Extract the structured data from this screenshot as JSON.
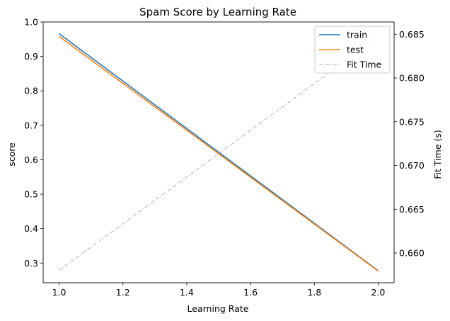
{
  "chart_data": {
    "type": "line",
    "title": "Spam Score by Learning Rate",
    "xlabel": "Learning Rate",
    "ylabel": "score",
    "y2label": "Fit Time (s)",
    "xlim": [
      0.95,
      2.05
    ],
    "ylim": [
      0.243,
      1.0
    ],
    "y2lim": [
      0.6566,
      0.6864
    ],
    "xticks": [
      "1.0",
      "1.2",
      "1.4",
      "1.6",
      "1.8",
      "2.0"
    ],
    "yticks": [
      "0.3",
      "0.4",
      "0.5",
      "0.6",
      "0.7",
      "0.8",
      "0.9",
      "1.0"
    ],
    "y2ticks": [
      "0.660",
      "0.665",
      "0.670",
      "0.675",
      "0.680",
      "0.685"
    ],
    "grid": false,
    "legend_position": "top-right",
    "series": [
      {
        "name": "train",
        "axis": "left",
        "x": [
          1.0,
          2.0
        ],
        "y": [
          0.966,
          0.278
        ],
        "color": "#1f77b4",
        "style": "solid"
      },
      {
        "name": "test",
        "axis": "left",
        "x": [
          1.0,
          2.0
        ],
        "y": [
          0.958,
          0.277
        ],
        "color": "#ff7f0e",
        "style": "solid"
      },
      {
        "name": "Fit Time",
        "axis": "right",
        "x": [
          1.0,
          2.0
        ],
        "y": [
          0.658,
          0.6847
        ],
        "color": "#999999",
        "style": "dashdot"
      }
    ]
  }
}
